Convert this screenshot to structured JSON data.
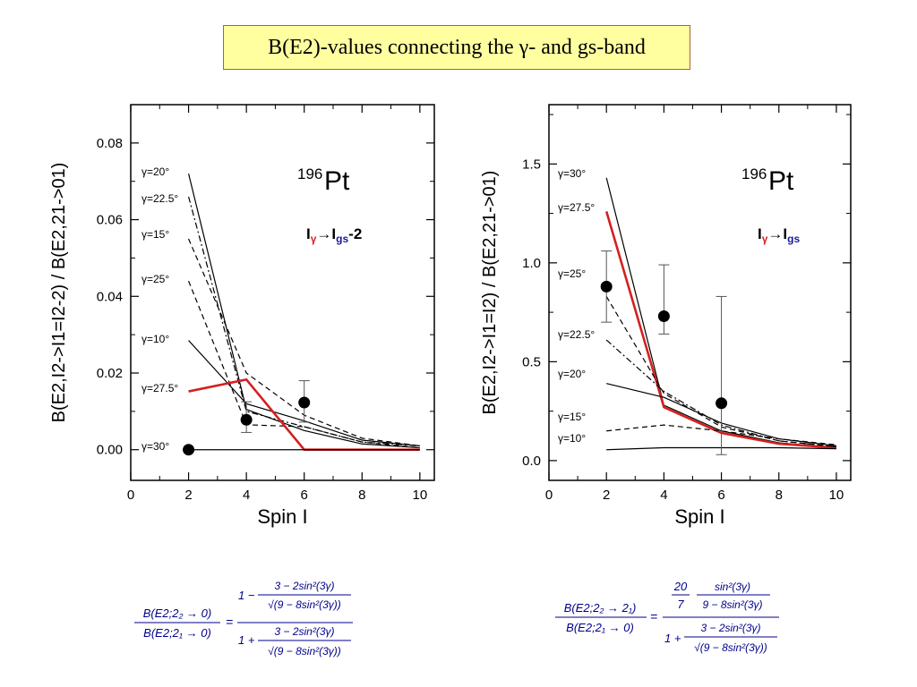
{
  "slide": {
    "title": "B(E2)-values connecting the γ- and gs-band"
  },
  "chart_data": [
    {
      "type": "line",
      "nucleus_mass": "196",
      "nucleus_symbol": "Pt",
      "annotation": {
        "main": "I",
        "main_sub": "γ",
        "arrow": "→",
        "target": "I",
        "target_sub": "gs",
        "suffix": "-2"
      },
      "xlabel": "Spin I",
      "ylabel": "B(E2,I2->I1=I2-2) / B(E2,21->01)",
      "xlim": [
        0,
        10.5
      ],
      "ylim": [
        -0.008,
        0.09
      ],
      "xticks": [
        "0",
        "2",
        "4",
        "6",
        "8",
        "10"
      ],
      "yticks": [
        "0.00",
        "0.02",
        "0.04",
        "0.06",
        "0.08"
      ],
      "series": [
        {
          "name": "γ=20°",
          "style": "solid",
          "x": [
            2,
            4,
            6,
            8,
            10
          ],
          "y": [
            0.072,
            0.0105,
            0.005,
            0.0015,
            0.0005
          ]
        },
        {
          "name": "γ=22.5°",
          "style": "dashdot",
          "x": [
            2,
            4,
            6,
            8,
            10
          ],
          "y": [
            0.066,
            0.01,
            0.006,
            0.002,
            0.001
          ]
        },
        {
          "name": "γ=15°",
          "style": "dashed",
          "x": [
            2,
            4,
            6,
            8,
            10
          ],
          "y": [
            0.055,
            0.02,
            0.009,
            0.003,
            0.001
          ]
        },
        {
          "name": "γ=25°",
          "style": "dashed",
          "x": [
            2,
            4,
            6,
            8,
            10
          ],
          "y": [
            0.044,
            0.0065,
            0.006,
            0.002,
            0.0005
          ]
        },
        {
          "name": "γ=10°",
          "style": "solid",
          "x": [
            2,
            4,
            6,
            8,
            10
          ],
          "y": [
            0.0285,
            0.012,
            0.0075,
            0.0025,
            0.001
          ]
        },
        {
          "name": "γ=27.5°",
          "style": "solid-red",
          "x": [
            2,
            4,
            6,
            8,
            10
          ],
          "y": [
            0.0152,
            0.0183,
            0.0,
            0.0,
            0.0
          ]
        },
        {
          "name": "γ=30°",
          "style": "solid",
          "x": [
            2,
            4,
            6,
            8,
            10
          ],
          "y": [
            0.0,
            0.0,
            0.0,
            0.0,
            0.0
          ]
        }
      ],
      "experiment": [
        {
          "x": 2,
          "y": 0.0,
          "err": null
        },
        {
          "x": 4,
          "y": 0.0078,
          "err": [
            0.0045,
            0.0125
          ]
        },
        {
          "x": 6,
          "y": 0.0123,
          "err": [
            0.0072,
            0.018
          ]
        }
      ]
    },
    {
      "type": "line",
      "nucleus_mass": "196",
      "nucleus_symbol": "Pt",
      "annotation": {
        "main": "I",
        "main_sub": "γ",
        "arrow": "→",
        "target": "I",
        "target_sub": "gs",
        "suffix": ""
      },
      "xlabel": "Spin I",
      "ylabel": "B(E2,I2->I1=I2) / B(E2,21->01)",
      "xlim": [
        0,
        10.5
      ],
      "ylim": [
        -0.1,
        1.8
      ],
      "xticks": [
        "0",
        "2",
        "4",
        "6",
        "8",
        "10"
      ],
      "yticks": [
        "0.0",
        "0.5",
        "1.0",
        "1.5"
      ],
      "series": [
        {
          "name": "γ=30°",
          "style": "solid",
          "x": [
            2,
            4,
            6,
            8,
            10
          ],
          "y": [
            1.43,
            0.28,
            0.15,
            0.09,
            0.065
          ]
        },
        {
          "name": "γ=27.5°",
          "style": "solid-red",
          "x": [
            2,
            4,
            6,
            8,
            10
          ],
          "y": [
            1.26,
            0.27,
            0.14,
            0.085,
            0.065
          ]
        },
        {
          "name": "γ=25°",
          "style": "dashed",
          "x": [
            2,
            4,
            6,
            8,
            10
          ],
          "y": [
            0.83,
            0.34,
            0.17,
            0.1,
            0.07
          ]
        },
        {
          "name": "γ=22.5°",
          "style": "dashdot",
          "x": [
            2,
            4,
            6,
            8,
            10
          ],
          "y": [
            0.61,
            0.35,
            0.18,
            0.1,
            0.07
          ]
        },
        {
          "name": "γ=20°",
          "style": "solid",
          "x": [
            2,
            4,
            6,
            8,
            10
          ],
          "y": [
            0.39,
            0.32,
            0.19,
            0.11,
            0.075
          ]
        },
        {
          "name": "γ=15°",
          "style": "dashed",
          "x": [
            2,
            4,
            6,
            8,
            10
          ],
          "y": [
            0.15,
            0.18,
            0.15,
            0.11,
            0.08
          ]
        },
        {
          "name": "γ=10°",
          "style": "solid",
          "x": [
            2,
            4,
            6,
            8,
            10
          ],
          "y": [
            0.055,
            0.065,
            0.065,
            0.065,
            0.06
          ]
        }
      ],
      "experiment": [
        {
          "x": 2,
          "y": 0.88,
          "err": [
            0.7,
            1.06
          ]
        },
        {
          "x": 4,
          "y": 0.73,
          "err": [
            0.64,
            0.99
          ]
        },
        {
          "x": 6,
          "y": 0.29,
          "err": [
            0.03,
            0.83
          ]
        }
      ]
    }
  ],
  "formulas": {
    "left": {
      "lhs_num": "B(E2;2₂ → 0)",
      "lhs_den": "B(E2;2₁ → 0)",
      "top_a": "1 −",
      "top_num": "3 − 2sin²(3γ)",
      "top_den": "√(9 − 8sin²(3γ))",
      "bot_a": "1 +",
      "bot_num": "3 − 2sin²(3γ)",
      "bot_den": "√(9 − 8sin²(3γ))"
    },
    "right": {
      "lhs_num": "B(E2;2₂ → 2₁)",
      "lhs_den": "B(E2;2₁ → 0)",
      "frac_num": "20",
      "frac_den": "7",
      "sin_num": "sin²(3γ)",
      "sin_den": "9 − 8sin²(3γ)",
      "bot_a": "1 +",
      "bot_num": "3 − 2sin²(3γ)",
      "bot_den": "√(9 − 8sin²(3γ))"
    }
  }
}
